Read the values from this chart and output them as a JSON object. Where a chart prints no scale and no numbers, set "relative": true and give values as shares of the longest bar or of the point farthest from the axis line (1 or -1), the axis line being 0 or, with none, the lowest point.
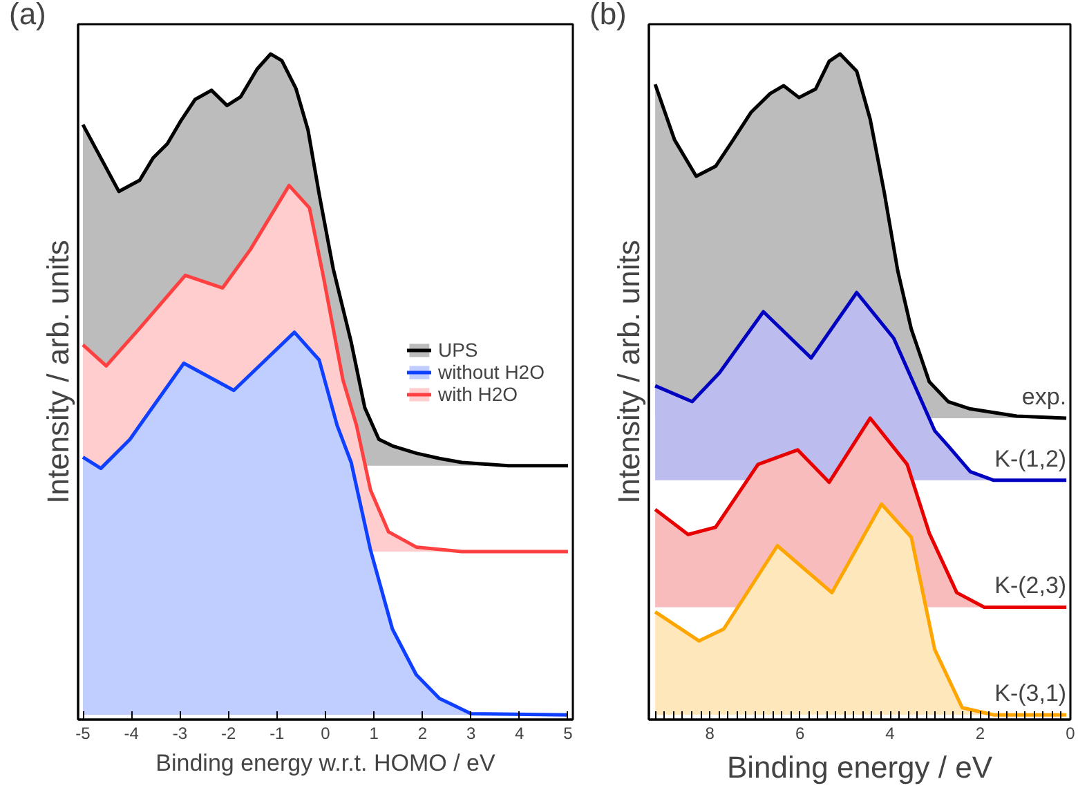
{
  "chart_data": [
    {
      "type": "area",
      "title": "(a)",
      "xlabel": "Binding energy w.r.t. HOMO / eV",
      "ylabel": "Intensity / arb. units",
      "relative": true,
      "legend": "right",
      "xlim": [
        -5.1,
        5.1
      ],
      "xticks": [
        -5,
        -4,
        -3,
        -2,
        -1,
        0,
        1,
        2,
        3,
        4,
        5
      ],
      "series": [
        {
          "name": "UPS",
          "color": "#000000",
          "x": [
            -5,
            -4.26,
            -3.83,
            -3.55,
            -3.26,
            -2.98,
            -2.69,
            -2.35,
            -2.03,
            -1.75,
            -1.41,
            -1.13,
            -0.9,
            -0.61,
            -0.36,
            -0.13,
            0.16,
            0.53,
            0.81,
            1.1,
            1.38,
            1.87,
            2.35,
            2.81,
            3.77,
            5
          ],
          "values": [
            0.893,
            0.792,
            0.809,
            0.843,
            0.864,
            0.899,
            0.931,
            0.945,
            0.922,
            0.935,
            0.977,
            1.0,
            0.99,
            0.948,
            0.885,
            0.788,
            0.675,
            0.564,
            0.465,
            0.417,
            0.407,
            0.396,
            0.388,
            0.382,
            0.377,
            0.377
          ]
        },
        {
          "name": "without H2O",
          "color": "#1040ff",
          "x": [
            -5,
            -4.63,
            -4.03,
            -3.83,
            -2.92,
            -1.89,
            -0.64,
            -0.13,
            0.24,
            0.53,
            0.93,
            1.38,
            1.87,
            2.35,
            3.0,
            5
          ],
          "values": [
            0.39,
            0.373,
            0.417,
            0.438,
            0.532,
            0.491,
            0.579,
            0.537,
            0.438,
            0.382,
            0.249,
            0.13,
            0.061,
            0.025,
            0.002,
            0.0
          ]
        },
        {
          "name": "with H2O",
          "color": "#ff4040",
          "x": [
            -5,
            -4.52,
            -3.83,
            -2.89,
            -2.12,
            -1.55,
            -0.75,
            -0.33,
            -0.04,
            0.36,
            0.64,
            0.93,
            1.3,
            1.87,
            2.81,
            5
          ],
          "values": [
            0.56,
            0.528,
            0.585,
            0.665,
            0.646,
            0.704,
            0.801,
            0.767,
            0.662,
            0.507,
            0.438,
            0.34,
            0.277,
            0.254,
            0.247,
            0.247
          ]
        }
      ]
    },
    {
      "type": "area",
      "title": "(b)",
      "xlabel": "Binding energy / eV",
      "ylabel": "Intensity / arb. units",
      "relative": true,
      "xlim": [
        9.35,
        0
      ],
      "xticks": [
        {
          "value": 9.2,
          "label": null
        },
        {
          "value": 9.0,
          "label": null
        },
        {
          "value": 8.8,
          "label": null
        },
        {
          "value": 8.6,
          "label": null
        },
        {
          "value": 8.4,
          "label": null
        },
        {
          "value": 8.2,
          "label": null
        },
        8,
        {
          "value": 7.8,
          "label": null
        },
        {
          "value": 7.6,
          "label": null
        },
        {
          "value": 7.4,
          "label": null
        },
        {
          "value": 7.2,
          "label": null
        },
        {
          "value": 7.0,
          "label": null
        },
        {
          "value": 6.8,
          "label": null
        },
        {
          "value": 6.6,
          "label": null
        },
        {
          "value": 6.4,
          "label": null
        },
        {
          "value": 6.2,
          "label": null
        },
        6,
        {
          "value": 5.8,
          "label": null
        },
        {
          "value": 5.6,
          "label": null
        },
        {
          "value": 5.4,
          "label": null
        },
        {
          "value": 5.2,
          "label": null
        },
        {
          "value": 5.0,
          "label": null
        },
        {
          "value": 4.8,
          "label": null
        },
        {
          "value": 4.6,
          "label": null
        },
        {
          "value": 4.4,
          "label": null
        },
        {
          "value": 4.2,
          "label": null
        },
        4,
        {
          "value": 3.8,
          "label": null
        },
        {
          "value": 3.6,
          "label": null
        },
        {
          "value": 3.4,
          "label": null
        },
        {
          "value": 3.2,
          "label": null
        },
        {
          "value": 3.0,
          "label": null
        },
        {
          "value": 2.8,
          "label": null
        },
        {
          "value": 2.6,
          "label": null
        },
        {
          "value": 2.4,
          "label": null
        },
        {
          "value": 2.2,
          "label": null
        },
        2,
        {
          "value": 1.8,
          "label": null
        },
        {
          "value": 1.6,
          "label": null
        },
        {
          "value": 1.4,
          "label": null
        },
        {
          "value": 1.2,
          "label": null
        },
        {
          "value": 1.0,
          "label": null
        },
        {
          "value": 0.8,
          "label": null
        },
        {
          "value": 0.6,
          "label": null
        },
        {
          "value": 0.4,
          "label": null
        },
        {
          "value": 0.2,
          "label": null
        },
        0
      ],
      "series": [
        {
          "name": "exp.",
          "color": "#000000",
          "x": [
            9.21,
            8.78,
            8.3,
            7.87,
            7.48,
            7.08,
            6.66,
            6.36,
            6.02,
            5.65,
            5.35,
            5.11,
            4.74,
            4.44,
            4.13,
            3.83,
            3.53,
            3.13,
            2.71,
            2.22,
            1.19,
            0.09
          ],
          "values": [
            0.954,
            0.87,
            0.815,
            0.83,
            0.87,
            0.912,
            0.94,
            0.952,
            0.934,
            0.947,
            0.989,
            1.0,
            0.974,
            0.901,
            0.791,
            0.672,
            0.584,
            0.504,
            0.474,
            0.463,
            0.452,
            0.449
          ]
        },
        {
          "name": "K-(1,2)",
          "color": "#0000c0",
          "x": [
            9.21,
            8.39,
            7.78,
            6.81,
            5.75,
            4.74,
            3.92,
            3.01,
            2.71,
            2.22,
            1.7,
            0.09
          ],
          "values": [
            0.498,
            0.474,
            0.518,
            0.61,
            0.54,
            0.639,
            0.57,
            0.43,
            0.407,
            0.368,
            0.355,
            0.355
          ]
        },
        {
          "name": "K-(2,3)",
          "color": "#e80000",
          "x": [
            9.21,
            8.48,
            7.87,
            6.93,
            6.05,
            5.35,
            4.44,
            3.62,
            3.13,
            2.52,
            1.91,
            0.09
          ],
          "values": [
            0.311,
            0.273,
            0.284,
            0.379,
            0.401,
            0.352,
            0.449,
            0.379,
            0.275,
            0.185,
            0.163,
            0.163
          ]
        },
        {
          "name": "K-(3,1)",
          "color": "#ffa500",
          "x": [
            9.21,
            8.24,
            7.69,
            6.5,
            5.29,
            4.19,
            3.53,
            3.01,
            2.4,
            1.7,
            0.09
          ],
          "values": [
            0.156,
            0.112,
            0.13,
            0.256,
            0.185,
            0.319,
            0.269,
            0.099,
            0.011,
            0.0,
            0.0
          ]
        }
      ]
    }
  ]
}
